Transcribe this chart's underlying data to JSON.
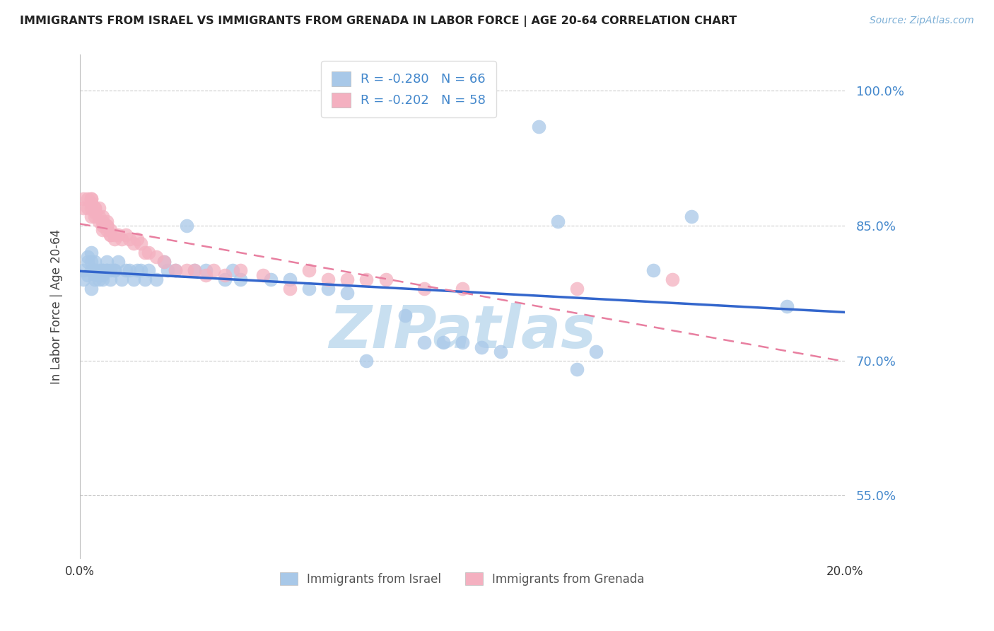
{
  "title": "IMMIGRANTS FROM ISRAEL VS IMMIGRANTS FROM GRENADA IN LABOR FORCE | AGE 20-64 CORRELATION CHART",
  "source": "Source: ZipAtlas.com",
  "ylabel": "In Labor Force | Age 20-64",
  "xmin": 0.0,
  "xmax": 0.2,
  "ymin": 0.48,
  "ymax": 1.04,
  "yticks": [
    0.55,
    0.7,
    0.85,
    1.0
  ],
  "ytick_labels": [
    "55.0%",
    "70.0%",
    "85.0%",
    "100.0%"
  ],
  "israel_R": -0.28,
  "israel_N": 66,
  "grenada_R": -0.202,
  "grenada_N": 58,
  "israel_color": "#a8c8e8",
  "grenada_color": "#f4b0c0",
  "trend_israel_color": "#3366cc",
  "trend_grenada_color": "#e87fa0",
  "legend_text_color": "#4488cc",
  "watermark": "ZIPatlas",
  "watermark_color": "#c8dff0",
  "israel_x": [
    0.001,
    0.001,
    0.002,
    0.002,
    0.002,
    0.003,
    0.003,
    0.003,
    0.003,
    0.004,
    0.004,
    0.004,
    0.004,
    0.004,
    0.005,
    0.005,
    0.005,
    0.006,
    0.006,
    0.006,
    0.006,
    0.007,
    0.007,
    0.007,
    0.008,
    0.008,
    0.009,
    0.009,
    0.01,
    0.011,
    0.012,
    0.013,
    0.014,
    0.015,
    0.016,
    0.017,
    0.018,
    0.02,
    0.022,
    0.023,
    0.025,
    0.028,
    0.03,
    0.033,
    0.038,
    0.04,
    0.042,
    0.05,
    0.055,
    0.06,
    0.065,
    0.07,
    0.075,
    0.085,
    0.09,
    0.095,
    0.1,
    0.105,
    0.11,
    0.12,
    0.125,
    0.13,
    0.135,
    0.15,
    0.16,
    0.185
  ],
  "israel_y": [
    0.8,
    0.79,
    0.795,
    0.81,
    0.815,
    0.8,
    0.81,
    0.82,
    0.78,
    0.795,
    0.8,
    0.81,
    0.8,
    0.79,
    0.8,
    0.795,
    0.79,
    0.79,
    0.8,
    0.795,
    0.8,
    0.8,
    0.8,
    0.81,
    0.8,
    0.79,
    0.8,
    0.8,
    0.81,
    0.79,
    0.8,
    0.8,
    0.79,
    0.8,
    0.8,
    0.79,
    0.8,
    0.79,
    0.81,
    0.8,
    0.8,
    0.85,
    0.8,
    0.8,
    0.79,
    0.8,
    0.79,
    0.79,
    0.79,
    0.78,
    0.78,
    0.775,
    0.7,
    0.75,
    0.72,
    0.72,
    0.72,
    0.715,
    0.71,
    0.96,
    0.855,
    0.69,
    0.71,
    0.8,
    0.86,
    0.76
  ],
  "grenada_x": [
    0.001,
    0.001,
    0.002,
    0.002,
    0.003,
    0.003,
    0.003,
    0.003,
    0.003,
    0.004,
    0.004,
    0.004,
    0.004,
    0.005,
    0.005,
    0.005,
    0.006,
    0.006,
    0.006,
    0.006,
    0.007,
    0.007,
    0.007,
    0.007,
    0.008,
    0.008,
    0.008,
    0.009,
    0.009,
    0.01,
    0.011,
    0.012,
    0.013,
    0.014,
    0.015,
    0.016,
    0.017,
    0.018,
    0.02,
    0.022,
    0.025,
    0.028,
    0.03,
    0.033,
    0.035,
    0.038,
    0.042,
    0.048,
    0.055,
    0.06,
    0.065,
    0.07,
    0.075,
    0.08,
    0.09,
    0.1,
    0.13,
    0.155
  ],
  "grenada_y": [
    0.87,
    0.88,
    0.87,
    0.88,
    0.88,
    0.875,
    0.88,
    0.87,
    0.86,
    0.87,
    0.865,
    0.86,
    0.87,
    0.855,
    0.86,
    0.87,
    0.845,
    0.855,
    0.86,
    0.85,
    0.85,
    0.845,
    0.85,
    0.855,
    0.84,
    0.845,
    0.84,
    0.835,
    0.84,
    0.84,
    0.835,
    0.84,
    0.835,
    0.83,
    0.835,
    0.83,
    0.82,
    0.82,
    0.815,
    0.81,
    0.8,
    0.8,
    0.8,
    0.795,
    0.8,
    0.795,
    0.8,
    0.795,
    0.78,
    0.8,
    0.79,
    0.79,
    0.79,
    0.79,
    0.78,
    0.78,
    0.78,
    0.79
  ]
}
